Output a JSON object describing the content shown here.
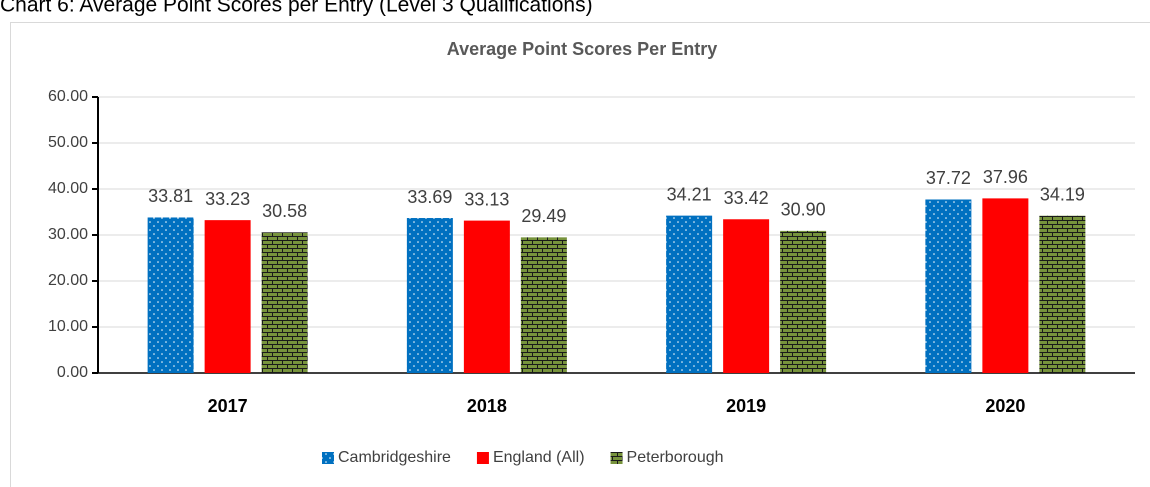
{
  "heading": "Chart 6: Average Point Scores per Entry (Level 3 Qualifications)",
  "chart_data": {
    "type": "bar",
    "title": "Average Point Scores Per Entry",
    "categories": [
      "2017",
      "2018",
      "2019",
      "2020"
    ],
    "series": [
      {
        "name": "Cambridgeshire",
        "color": "#0070c0",
        "pattern": "dots",
        "values": [
          33.81,
          33.69,
          34.21,
          37.72
        ],
        "value_labels": [
          "33.81",
          "33.69",
          "34.21",
          "37.72"
        ]
      },
      {
        "name": "England (All)",
        "color": "#ff0000",
        "pattern": null,
        "values": [
          33.23,
          33.13,
          33.42,
          37.96
        ],
        "value_labels": [
          "33.23",
          "33.13",
          "33.42",
          "37.96"
        ]
      },
      {
        "name": "Peterborough",
        "color": "#77933c",
        "pattern": "bricks",
        "values": [
          30.58,
          29.49,
          30.9,
          34.19
        ],
        "value_labels": [
          "30.58",
          "29.49",
          "30.90",
          "34.19"
        ]
      }
    ],
    "ylim": [
      0,
      60
    ],
    "yticks": [
      {
        "value": 0,
        "label": "0.00"
      },
      {
        "value": 10,
        "label": "10.00"
      },
      {
        "value": 20,
        "label": "20.00"
      },
      {
        "value": 30,
        "label": "30.00"
      },
      {
        "value": 40,
        "label": "40.00"
      },
      {
        "value": 50,
        "label": "50.00"
      },
      {
        "value": 60,
        "label": "60.00"
      }
    ],
    "grid": true,
    "legend": "bottom"
  }
}
